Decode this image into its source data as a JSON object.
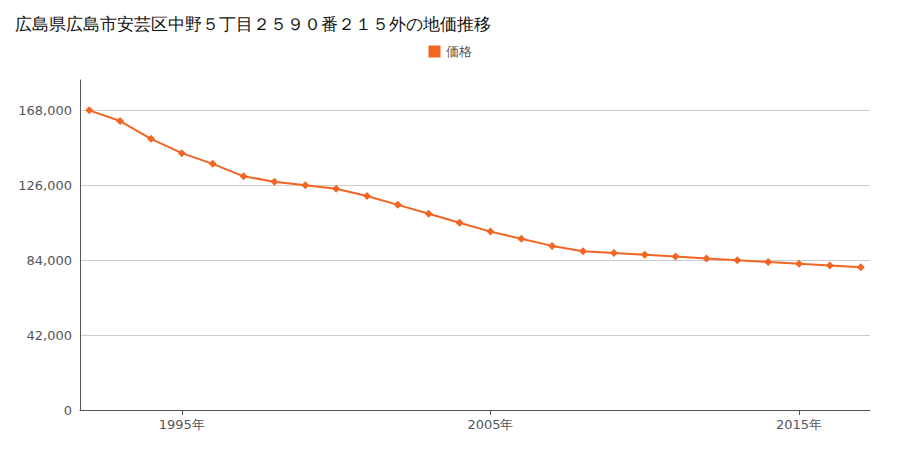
{
  "chart_data": {
    "type": "line",
    "title": "広島県広島市安芸区中野５丁目２５９０番２１５外の地価推移",
    "x": [
      1992,
      1993,
      1994,
      1995,
      1996,
      1997,
      1998,
      1999,
      2000,
      2001,
      2002,
      2003,
      2004,
      2005,
      2006,
      2007,
      2008,
      2009,
      2010,
      2011,
      2012,
      2013,
      2014,
      2015,
      2016,
      2017
    ],
    "series": [
      {
        "name": "価格",
        "color": "#F26522",
        "marker": "diamond",
        "values": [
          168000,
          162000,
          152000,
          144000,
          138000,
          131000,
          128000,
          126000,
          124000,
          120000,
          115000,
          110000,
          105000,
          100000,
          96000,
          92000,
          89000,
          88000,
          87000,
          86000,
          85000,
          84000,
          83000,
          82000,
          81000,
          80000
        ]
      }
    ],
    "xlim": [
      1991.7,
      2017.3
    ],
    "xticks": [
      {
        "value": 1995,
        "label": "1995年"
      },
      {
        "value": 2005,
        "label": "2005年"
      },
      {
        "value": 2015,
        "label": "2015年"
      }
    ],
    "ylim": [
      0,
      185000
    ],
    "yticks": [
      0,
      {
        "value": 42000,
        "label": "42,000"
      },
      {
        "value": 84000,
        "label": "84,000"
      },
      {
        "value": 126000,
        "label": "126,000"
      },
      {
        "value": 168000,
        "label": "168,000"
      }
    ],
    "grid": true,
    "legend": "top"
  }
}
